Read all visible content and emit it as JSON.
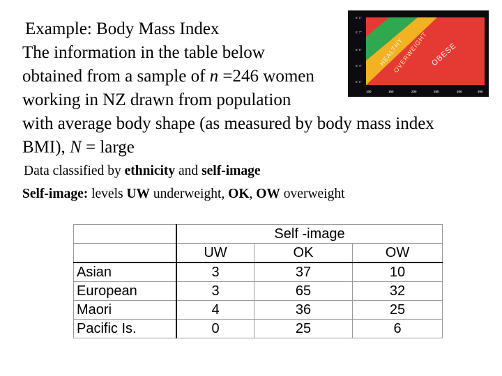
{
  "slide": {
    "title": "Example: Body Mass Index",
    "paragraph": {
      "line1": "The information in the table below",
      "line2": "obtained from a sample of ",
      "n_var": "n",
      "line2_rest": " =246 women",
      "line3": "working in NZ drawn from population",
      "line4": "with average body shape (as measured by body mass index",
      "line5_a": "BMI), ",
      "N_var": "N",
      "line5_b": " = large"
    },
    "classified": {
      "prefix": "Data classified by ",
      "ethnicity": "ethnicity",
      "and": " and ",
      "self_image": "self-image"
    },
    "levels": {
      "label": "Self-image:",
      "text_a": " levels ",
      "uw": "UW",
      "text_b": " underweight, ",
      "ok": "OK",
      "text_c": ", ",
      "ow": "OW",
      "text_d": "  overweight"
    }
  },
  "bmi_chart": {
    "y_labels": [
      "6' 1\"",
      "5' 7\"",
      "5' 5\"",
      "5' 4\"",
      "5' 1\""
    ],
    "x_labels": [
      "100",
      "150",
      "200",
      "250",
      "300",
      "350"
    ],
    "healthy": "HEALTHY",
    "overweight": "OVERWEIGHT",
    "obese": "OBESE",
    "colors": {
      "healthy": "#2fa84f",
      "overweight": "#f2b221",
      "obese": "#e53a33",
      "background": "#0b0b10"
    }
  },
  "table": {
    "group_header": "Self -image",
    "columns": [
      "UW",
      "OK",
      "OW"
    ],
    "rows": [
      {
        "label": "Asian",
        "values": [
          "3",
          "37",
          "10"
        ]
      },
      {
        "label": "European",
        "values": [
          "3",
          "65",
          "32"
        ]
      },
      {
        "label": "Maori",
        "values": [
          "4",
          "36",
          "25"
        ]
      },
      {
        "label": "Pacific Is.",
        "values": [
          "0",
          "25",
          "6"
        ]
      }
    ]
  }
}
